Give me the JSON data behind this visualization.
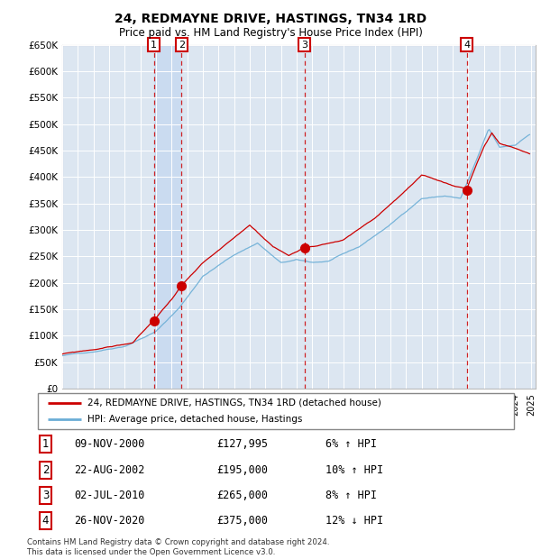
{
  "title": "24, REDMAYNE DRIVE, HASTINGS, TN34 1RD",
  "subtitle": "Price paid vs. HM Land Registry's House Price Index (HPI)",
  "ylim": [
    0,
    650000
  ],
  "yticks": [
    0,
    50000,
    100000,
    150000,
    200000,
    250000,
    300000,
    350000,
    400000,
    450000,
    500000,
    550000,
    600000,
    650000
  ],
  "ytick_labels": [
    "£0",
    "£50K",
    "£100K",
    "£150K",
    "£200K",
    "£250K",
    "£300K",
    "£350K",
    "£400K",
    "£450K",
    "£500K",
    "£550K",
    "£600K",
    "£650K"
  ],
  "xlim_start": 1995,
  "xlim_end": 2025.3,
  "sales": [
    {
      "num": 1,
      "price": 127995,
      "x_year": 2000.86
    },
    {
      "num": 2,
      "price": 195000,
      "x_year": 2002.64
    },
    {
      "num": 3,
      "price": 265000,
      "x_year": 2010.5
    },
    {
      "num": 4,
      "price": 375000,
      "x_year": 2020.9
    }
  ],
  "table_rows": [
    {
      "num": "1",
      "date": "09-NOV-2000",
      "price": "£127,995",
      "hpi": "6% ↑ HPI"
    },
    {
      "num": "2",
      "date": "22-AUG-2002",
      "price": "£195,000",
      "hpi": "10% ↑ HPI"
    },
    {
      "num": "3",
      "date": "02-JUL-2010",
      "price": "£265,000",
      "hpi": "8% ↑ HPI"
    },
    {
      "num": "4",
      "date": "26-NOV-2020",
      "price": "£375,000",
      "hpi": "12% ↓ HPI"
    }
  ],
  "legend_label_red": "24, REDMAYNE DRIVE, HASTINGS, TN34 1RD (detached house)",
  "legend_label_blue": "HPI: Average price, detached house, Hastings",
  "footer": "Contains HM Land Registry data © Crown copyright and database right 2024.\nThis data is licensed under the Open Government Licence v3.0.",
  "red_color": "#cc0000",
  "blue_color": "#6baed6",
  "bg_color": "#dce6f1",
  "shade_color": "#c6d9f0",
  "vline_color": "#cc0000",
  "box_edgecolor": "#cc0000",
  "title_fontsize": 10,
  "subtitle_fontsize": 8.5
}
